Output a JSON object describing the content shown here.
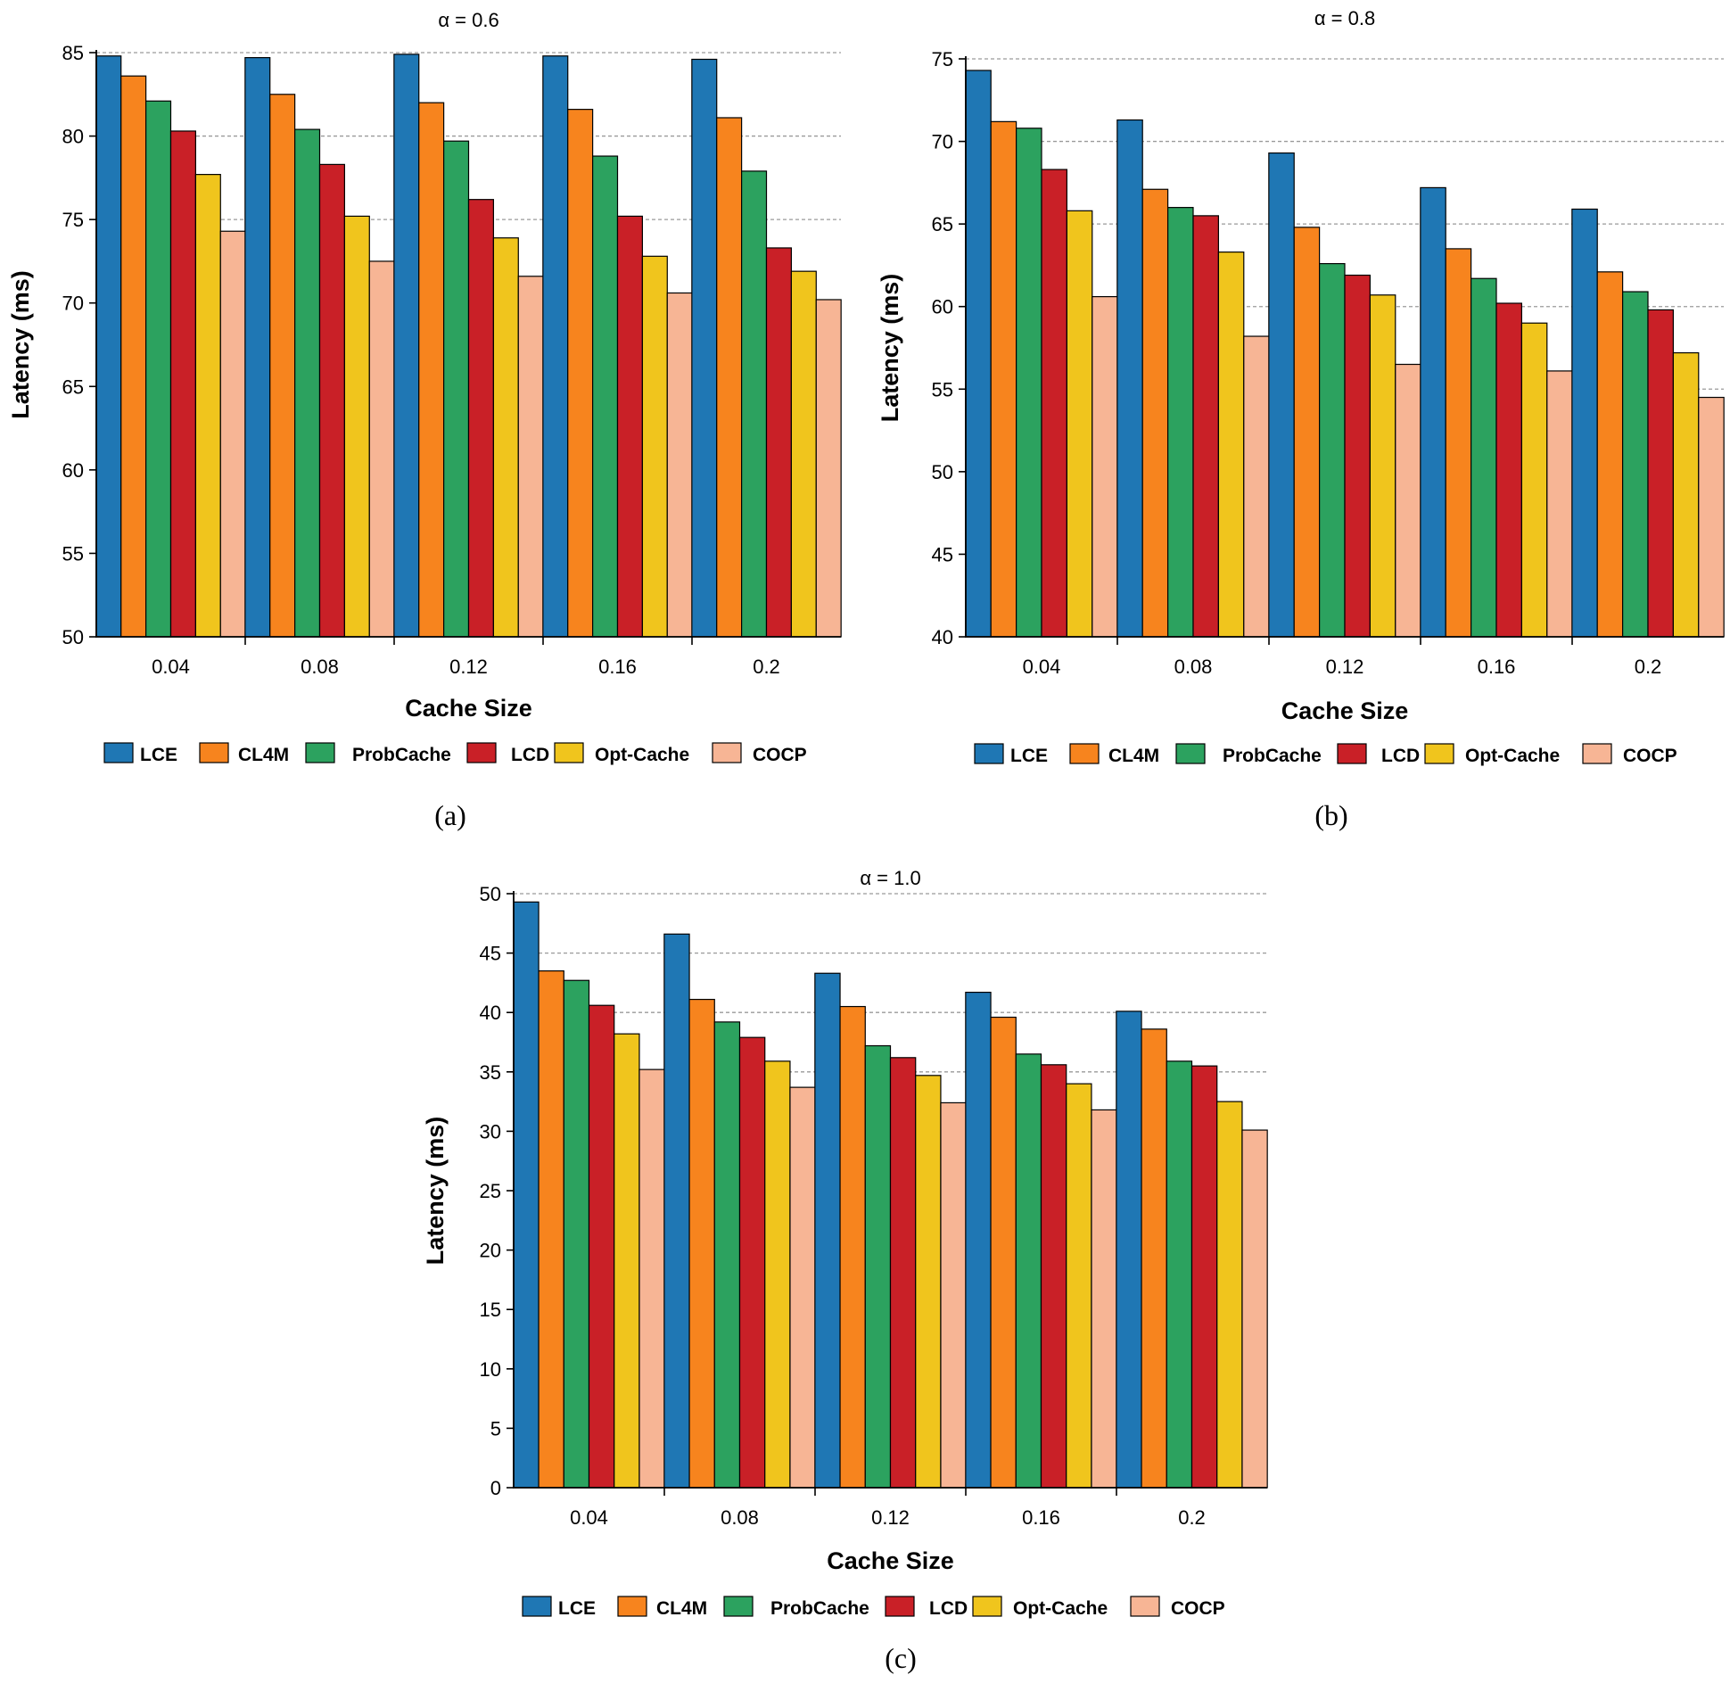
{
  "colors": {
    "LCE": "#1f77b4",
    "CL4M": "#f7841e",
    "ProbCache": "#2ca25f",
    "LCD": "#c92027",
    "Opt-Cache": "#f0c51d",
    "COCP": "#f7b595"
  },
  "legend": [
    "LCE",
    "CL4M",
    "ProbCache",
    "LCD",
    "Opt-Cache",
    "COCP"
  ],
  "captions": [
    "(a)",
    "(b)",
    "(c)"
  ],
  "chart_data": [
    {
      "type": "bar",
      "title": "α = 0.6",
      "xlabel": "Cache Size",
      "ylabel": "Latency (ms)",
      "categories": [
        "0.04",
        "0.08",
        "0.12",
        "0.16",
        "0.2"
      ],
      "ylim": [
        50,
        85
      ],
      "yticks": [
        50,
        55,
        60,
        65,
        70,
        75,
        80,
        85
      ],
      "series": [
        {
          "name": "LCE",
          "values": [
            84.8,
            84.7,
            84.9,
            84.8,
            84.6
          ]
        },
        {
          "name": "CL4M",
          "values": [
            83.6,
            82.5,
            82.0,
            81.6,
            81.1
          ]
        },
        {
          "name": "ProbCache",
          "values": [
            82.1,
            80.4,
            79.7,
            78.8,
            77.9
          ]
        },
        {
          "name": "LCD",
          "values": [
            80.3,
            78.3,
            76.2,
            75.2,
            73.3
          ]
        },
        {
          "name": "Opt-Cache",
          "values": [
            77.7,
            75.2,
            73.9,
            72.8,
            71.9
          ]
        },
        {
          "name": "COCP",
          "values": [
            74.3,
            72.5,
            71.6,
            70.6,
            70.2
          ]
        }
      ]
    },
    {
      "type": "bar",
      "title": "α = 0.8",
      "xlabel": "Cache Size",
      "ylabel": "Latency (ms)",
      "categories": [
        "0.04",
        "0.08",
        "0.12",
        "0.16",
        "0.2"
      ],
      "ylim": [
        40,
        75
      ],
      "yticks": [
        40,
        45,
        50,
        55,
        60,
        65,
        70,
        75
      ],
      "series": [
        {
          "name": "LCE",
          "values": [
            74.3,
            71.3,
            69.3,
            67.2,
            65.9
          ]
        },
        {
          "name": "CL4M",
          "values": [
            71.2,
            67.1,
            64.8,
            63.5,
            62.1
          ]
        },
        {
          "name": "ProbCache",
          "values": [
            70.8,
            66.0,
            62.6,
            61.7,
            60.9
          ]
        },
        {
          "name": "LCD",
          "values": [
            68.3,
            65.5,
            61.9,
            60.2,
            59.8
          ]
        },
        {
          "name": "Opt-Cache",
          "values": [
            65.8,
            63.3,
            60.7,
            59.0,
            57.2
          ]
        },
        {
          "name": "COCP",
          "values": [
            60.6,
            58.2,
            56.5,
            56.1,
            54.5
          ]
        }
      ]
    },
    {
      "type": "bar",
      "title": "α = 1.0",
      "xlabel": "Cache Size",
      "ylabel": "Latency (ms)",
      "categories": [
        "0.04",
        "0.08",
        "0.12",
        "0.16",
        "0.2"
      ],
      "ylim": [
        0,
        50
      ],
      "yticks": [
        0,
        5,
        10,
        15,
        20,
        25,
        30,
        35,
        40,
        45,
        50
      ],
      "series": [
        {
          "name": "LCE",
          "values": [
            49.3,
            46.6,
            43.3,
            41.7,
            40.1
          ]
        },
        {
          "name": "CL4M",
          "values": [
            43.5,
            41.1,
            40.5,
            39.6,
            38.6
          ]
        },
        {
          "name": "ProbCache",
          "values": [
            42.7,
            39.2,
            37.2,
            36.5,
            35.9
          ]
        },
        {
          "name": "LCD",
          "values": [
            40.6,
            37.9,
            36.2,
            35.6,
            35.5
          ]
        },
        {
          "name": "Opt-Cache",
          "values": [
            38.2,
            35.9,
            34.7,
            34.0,
            32.5
          ]
        },
        {
          "name": "COCP",
          "values": [
            35.2,
            33.7,
            32.4,
            31.8,
            30.1
          ]
        }
      ]
    }
  ]
}
